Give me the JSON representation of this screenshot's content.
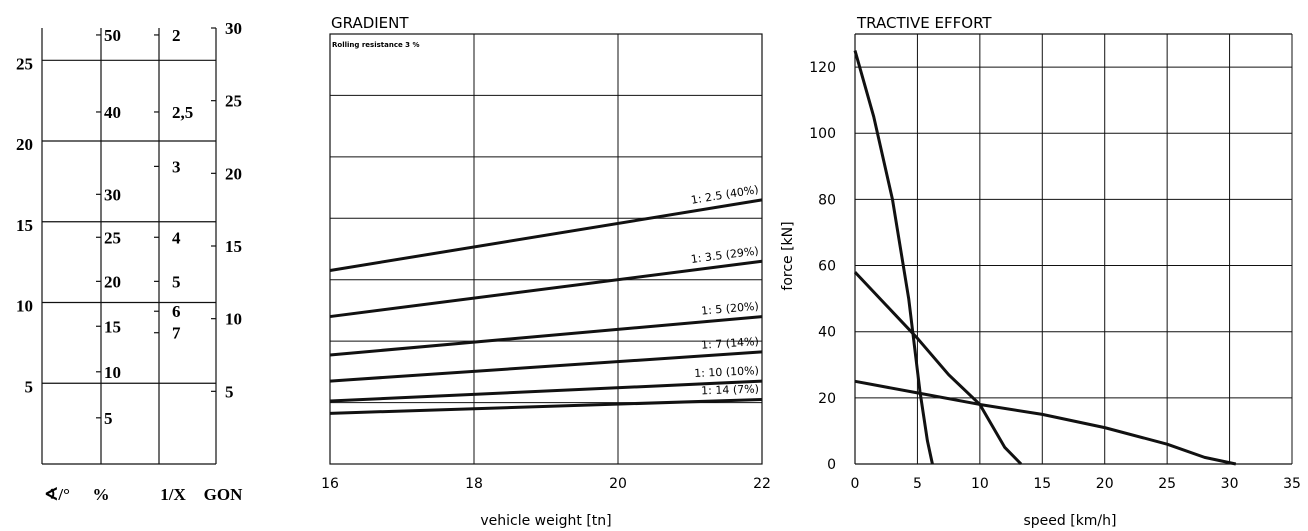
{
  "chart_data": [
    {
      "type": "nomogram",
      "scales": [
        {
          "name": "∢/°",
          "ticks": [
            "25",
            "20",
            "15",
            "10",
            "5"
          ]
        },
        {
          "name": "%",
          "ticks": [
            "50",
            "40",
            "30",
            "25",
            "20",
            "15",
            "10",
            "5"
          ]
        },
        {
          "name": "1/X",
          "ticks": [
            "2",
            "2,5",
            "3",
            "4",
            "5",
            "6",
            "7"
          ]
        },
        {
          "name": "GON",
          "ticks": [
            "30",
            "25",
            "20",
            "15",
            "10",
            "5"
          ]
        }
      ],
      "degree_range": [
        0,
        27
      ],
      "grid_degrees": [
        5,
        10,
        15,
        20,
        25
      ],
      "conversions": [
        {
          "percent": "50",
          "degree": 26.57
        },
        {
          "percent": "40",
          "degree": 21.8
        },
        {
          "percent": "30",
          "degree": 16.7
        },
        {
          "percent": "25",
          "degree": 14.04
        },
        {
          "percent": "20",
          "degree": 11.31
        },
        {
          "percent": "15",
          "degree": 8.53
        },
        {
          "percent": "10",
          "degree": 5.71
        },
        {
          "percent": "5",
          "degree": 2.86
        },
        {
          "ratio": "2",
          "degree": 26.57
        },
        {
          "ratio": "2,5",
          "degree": 21.8
        },
        {
          "ratio": "3",
          "degree": 18.43
        },
        {
          "ratio": "4",
          "degree": 14.04
        },
        {
          "ratio": "5",
          "degree": 11.31
        },
        {
          "ratio": "6",
          "degree": 9.46
        },
        {
          "ratio": "7",
          "degree": 8.13
        },
        {
          "gon": "30",
          "degree": 27
        },
        {
          "gon": "25",
          "degree": 22.5
        },
        {
          "gon": "20",
          "degree": 18
        },
        {
          "gon": "15",
          "degree": 13.5
        },
        {
          "gon": "10",
          "degree": 9
        },
        {
          "gon": "5",
          "degree": 4.5
        }
      ]
    },
    {
      "type": "line",
      "title": "GRADIENT",
      "subtitle": "Rolling resistance 3 %",
      "xlabel": "vehicle weight [tn]",
      "ylabel": "",
      "xlim": [
        16,
        22
      ],
      "x_ticks": [
        "16",
        "18",
        "20",
        "22"
      ],
      "ylim": [
        0,
        140
      ],
      "y_grid": [
        20,
        40,
        60,
        80,
        100,
        120
      ],
      "series": [
        {
          "name": "1: 2.5 (40%)",
          "x": [
            16,
            22
          ],
          "y": [
            63,
            86
          ]
        },
        {
          "name": "1: 3.5 (29%)",
          "x": [
            16,
            22
          ],
          "y": [
            48,
            66
          ]
        },
        {
          "name": "1: 5 (20%)",
          "x": [
            16,
            22
          ],
          "y": [
            35.5,
            48
          ]
        },
        {
          "name": "1: 7 (14%)",
          "x": [
            16,
            22
          ],
          "y": [
            27,
            36.5
          ]
        },
        {
          "name": "1: 10 (10%)",
          "x": [
            16,
            22
          ],
          "y": [
            20.5,
            27
          ]
        },
        {
          "name": "1: 14 (7%)",
          "x": [
            16,
            22
          ],
          "y": [
            16.5,
            21
          ]
        }
      ]
    },
    {
      "type": "line",
      "title": "TRACTIVE EFFORT",
      "xlabel": "speed [km/h]",
      "ylabel": "force [kN]",
      "xlim": [
        0,
        35
      ],
      "ylim": [
        0,
        130
      ],
      "x_ticks": [
        "0",
        "5",
        "10",
        "15",
        "20",
        "25",
        "30",
        "35"
      ],
      "y_ticks": [
        "0",
        "20",
        "40",
        "60",
        "80",
        "100",
        "120"
      ],
      "series": [
        {
          "x": [
            0,
            1.5,
            3,
            4.3,
            5.2,
            5.8,
            6.2
          ],
          "y": [
            125,
            105,
            80,
            50,
            22,
            7,
            0
          ]
        },
        {
          "x": [
            0,
            2.5,
            5,
            7.5,
            10,
            12,
            13.3
          ],
          "y": [
            58,
            48,
            38,
            27,
            18,
            5,
            0
          ]
        },
        {
          "x": [
            0,
            5,
            10,
            15,
            20,
            25,
            28,
            30.5
          ],
          "y": [
            25,
            21.5,
            18,
            15,
            11,
            6,
            2,
            0
          ]
        }
      ]
    }
  ]
}
